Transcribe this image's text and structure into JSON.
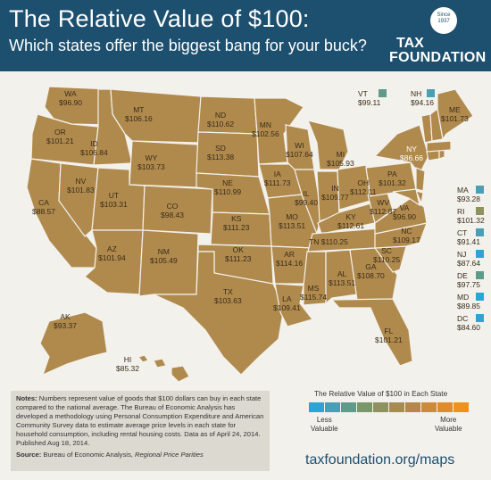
{
  "header": {
    "title": "The Relative Value of $100:",
    "subtitle": "Which states offer the biggest bang for your buck?",
    "logo_seal": "Since 1937",
    "logo_line1": "TAX",
    "logo_line2": "FOUNDATION",
    "bg": "#1d4f6e"
  },
  "colors": {
    "scale": [
      "#2aa5d8",
      "#4a9fb8",
      "#5f9a8a",
      "#7a976a",
      "#8f9161",
      "#a68c52",
      "#b6874a",
      "#cc8a3c",
      "#df8d2c",
      "#f0911c"
    ]
  },
  "states": {
    "WA": {
      "abbr": "WA",
      "value": "$96.90"
    },
    "OR": {
      "abbr": "OR",
      "value": "$101.21"
    },
    "CA": {
      "abbr": "CA",
      "value": "$88.57"
    },
    "NV": {
      "abbr": "NV",
      "value": "$101.83"
    },
    "ID": {
      "abbr": "ID",
      "value": "$106.84"
    },
    "MT": {
      "abbr": "MT",
      "value": "$106.16"
    },
    "WY": {
      "abbr": "WY",
      "value": "$103.73"
    },
    "UT": {
      "abbr": "UT",
      "value": "$103.31"
    },
    "AZ": {
      "abbr": "AZ",
      "value": "$101.94"
    },
    "CO": {
      "abbr": "CO",
      "value": "$98.43"
    },
    "NM": {
      "abbr": "NM",
      "value": "$105.49"
    },
    "ND": {
      "abbr": "ND",
      "value": "$110.62"
    },
    "SD": {
      "abbr": "SD",
      "value": "$113.38"
    },
    "NE": {
      "abbr": "NE",
      "value": "$110.99"
    },
    "KS": {
      "abbr": "KS",
      "value": "$111.23"
    },
    "OK": {
      "abbr": "OK",
      "value": "$111.23"
    },
    "TX": {
      "abbr": "TX",
      "value": "$103.63"
    },
    "MN": {
      "abbr": "MN",
      "value": "$102.56"
    },
    "IA": {
      "abbr": "IA",
      "value": "$111.73"
    },
    "MO": {
      "abbr": "MO",
      "value": "$113.51"
    },
    "AR": {
      "abbr": "AR",
      "value": "$114.16"
    },
    "LA": {
      "abbr": "LA",
      "value": "$109.41"
    },
    "WI": {
      "abbr": "WI",
      "value": "$107.64"
    },
    "IL": {
      "abbr": "IL",
      "value": "$99.40"
    },
    "MI": {
      "abbr": "MI",
      "value": "$105.93"
    },
    "IN": {
      "abbr": "IN",
      "value": "$109.77"
    },
    "OH": {
      "abbr": "OH",
      "value": "$112.11"
    },
    "KY": {
      "abbr": "KY",
      "value": "$112.61"
    },
    "TN": {
      "abbr": "TN",
      "value": "$110.25"
    },
    "MS": {
      "abbr": "MS",
      "value": "$115.74"
    },
    "AL": {
      "abbr": "AL",
      "value": "$113.51"
    },
    "GA": {
      "abbr": "GA",
      "value": "$108.70"
    },
    "FL": {
      "abbr": "FL",
      "value": "$101.21"
    },
    "SC": {
      "abbr": "SC",
      "value": "$110.25"
    },
    "NC": {
      "abbr": "NC",
      "value": "$109.17"
    },
    "VA": {
      "abbr": "VA",
      "value": "$96.90"
    },
    "WV": {
      "abbr": "WV",
      "value": "$112.87"
    },
    "PA": {
      "abbr": "PA",
      "value": "$101.32"
    },
    "NY": {
      "abbr": "NY",
      "value": "$86.66"
    },
    "ME": {
      "abbr": "ME",
      "value": "$101.73"
    },
    "AK": {
      "abbr": "AK",
      "value": "$93.37"
    },
    "HI": {
      "abbr": "HI",
      "value": "$85.32"
    }
  },
  "northeast": {
    "VT": {
      "abbr": "VT",
      "value": "$99.11"
    },
    "NH": {
      "abbr": "NH",
      "value": "$94.16"
    },
    "MA": {
      "abbr": "MA",
      "value": "$93.28"
    },
    "RI": {
      "abbr": "RI",
      "value": "$101.32"
    },
    "CT": {
      "abbr": "CT",
      "value": "$91.41"
    },
    "NJ": {
      "abbr": "NJ",
      "value": "$87.64"
    },
    "DE": {
      "abbr": "DE",
      "value": "$97.75"
    },
    "MD": {
      "abbr": "MD",
      "value": "$89.85"
    },
    "DC": {
      "abbr": "DC",
      "value": "$84.60"
    }
  },
  "notes": {
    "label": "Notes:",
    "text": " Numbers represent value of goods that $100 dollars can buy in each state compared to the national average. The Bureau of Economic Analysis has developed a methodology using Personal Consumption Expenditure and American Community Survey data to estimate average price levels in each state for household consumption, including rental housing costs.  Data as of April 24, 2014. Published Aug 18, 2014.",
    "source_label": "Source:",
    "source_text": " Bureau of Economic Analysis, ",
    "source_italic": "Regional Price Parities"
  },
  "legend": {
    "title": "The Relative Value of $100 in Each State",
    "less": "Less\nValuable",
    "more": "More\nValuable"
  },
  "footer": {
    "url": "taxfoundation.org/maps"
  }
}
